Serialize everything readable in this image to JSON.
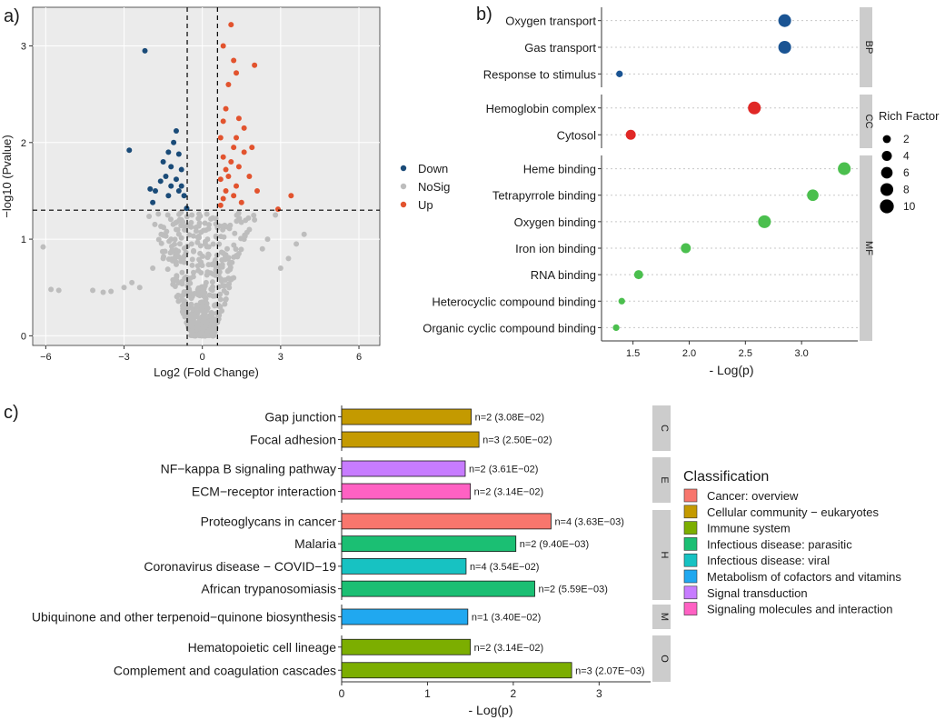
{
  "chart_data": [
    {
      "panel_label": "a)",
      "type": "scatter",
      "xlabel": "Log2 (Fold Change)",
      "ylabel": "−log10 (Pvalue)",
      "xlim": [
        -6.5,
        6.8
      ],
      "ylim": [
        -0.1,
        3.4
      ],
      "xticks": [
        -6,
        -3,
        0,
        3,
        6
      ],
      "xtick_labels": [
        "−6",
        "−3",
        "0",
        "3",
        "6"
      ],
      "yticks": [
        0,
        1,
        2,
        3
      ],
      "yline": 1.3,
      "xlines": [
        -0.58,
        0.58
      ],
      "legend": [
        {
          "name": "Down",
          "color": "#1a4b78"
        },
        {
          "name": "NoSig",
          "color": "#bdbdbd"
        },
        {
          "name": "Up",
          "color": "#e2532e"
        }
      ],
      "down_points": [
        [
          -2.2,
          2.95
        ],
        [
          -2.8,
          1.92
        ],
        [
          -1.0,
          2.12
        ],
        [
          -1.1,
          2.0
        ],
        [
          -1.3,
          1.9
        ],
        [
          -0.9,
          1.88
        ],
        [
          -1.5,
          1.8
        ],
        [
          -1.2,
          1.75
        ],
        [
          -0.8,
          1.72
        ],
        [
          -1.4,
          1.65
        ],
        [
          -1.0,
          1.62
        ],
        [
          -1.6,
          1.6
        ],
        [
          -2.0,
          1.52
        ],
        [
          -1.2,
          1.55
        ],
        [
          -0.8,
          1.55
        ],
        [
          -1.8,
          1.5
        ],
        [
          -1.3,
          1.45
        ],
        [
          -0.7,
          1.45
        ],
        [
          -0.9,
          1.5
        ],
        [
          -0.6,
          1.32
        ],
        [
          -1.9,
          1.38
        ]
      ],
      "up_points": [
        [
          1.1,
          3.22
        ],
        [
          0.8,
          3.0
        ],
        [
          1.2,
          2.85
        ],
        [
          2.0,
          2.8
        ],
        [
          1.3,
          2.72
        ],
        [
          1.0,
          2.6
        ],
        [
          0.9,
          2.35
        ],
        [
          1.4,
          2.25
        ],
        [
          0.8,
          2.22
        ],
        [
          1.6,
          2.15
        ],
        [
          0.7,
          2.05
        ],
        [
          1.3,
          2.05
        ],
        [
          1.2,
          1.95
        ],
        [
          1.9,
          1.95
        ],
        [
          1.6,
          1.9
        ],
        [
          0.8,
          1.85
        ],
        [
          1.1,
          1.8
        ],
        [
          1.4,
          1.75
        ],
        [
          0.9,
          1.72
        ],
        [
          1.0,
          1.65
        ],
        [
          1.8,
          1.65
        ],
        [
          0.7,
          1.62
        ],
        [
          1.3,
          1.55
        ],
        [
          0.9,
          1.5
        ],
        [
          2.1,
          1.5
        ],
        [
          1.2,
          1.45
        ],
        [
          0.8,
          1.42
        ],
        [
          3.4,
          1.45
        ],
        [
          0.7,
          1.35
        ],
        [
          2.9,
          1.31
        ],
        [
          1.5,
          1.38
        ]
      ],
      "nosig_points": [
        [
          -6.1,
          0.92
        ],
        [
          -5.8,
          0.48
        ],
        [
          -5.5,
          0.47
        ],
        [
          -4.2,
          0.47
        ],
        [
          -3.8,
          0.45
        ],
        [
          -3.5,
          0.46
        ],
        [
          -3.0,
          0.5
        ],
        [
          -2.7,
          0.55
        ],
        [
          -2.4,
          0.5
        ],
        [
          -1.2,
          1.0
        ],
        [
          -1.5,
          0.8
        ],
        [
          -1.9,
          0.7
        ],
        [
          3.0,
          0.7
        ],
        [
          3.3,
          0.8
        ],
        [
          3.9,
          1.05
        ],
        [
          3.6,
          0.95
        ],
        [
          2.5,
          1.0
        ],
        [
          2.3,
          0.9
        ],
        [
          2.8,
          1.25
        ],
        [
          2.0,
          1.2
        ],
        [
          1.8,
          1.1
        ],
        [
          1.6,
          1.0
        ],
        [
          1.4,
          0.85
        ],
        [
          1.2,
          0.6
        ],
        [
          -0.8,
          1.2
        ],
        [
          -1.0,
          1.1
        ],
        [
          -0.4,
          1.25
        ],
        [
          0.4,
          1.22
        ],
        [
          0.2,
          1.0
        ]
      ]
    },
    {
      "panel_label": "b)",
      "type": "scatter",
      "xlabel": "- Log(p)",
      "xlim": [
        1.22,
        3.5
      ],
      "xticks": [
        1.5,
        2.0,
        2.5,
        3.0
      ],
      "xtick_labels": [
        "1.5",
        "2.0",
        "2.5",
        "3.0"
      ],
      "size_legend_title": "Rich Factor",
      "size_legend": [
        2,
        4,
        6,
        8,
        10
      ],
      "facets": [
        {
          "label": "BP",
          "color": "#1a5493",
          "terms": [
            {
              "term": "Oxygen transport",
              "value": 2.85,
              "rich": 8
            },
            {
              "term": "Gas transport",
              "value": 2.85,
              "rich": 8
            },
            {
              "term": "Response to stimulus",
              "value": 1.38,
              "rich": 1
            }
          ]
        },
        {
          "label": "CC",
          "color": "#e02826",
          "terms": [
            {
              "term": "Hemoglobin complex",
              "value": 2.58,
              "rich": 8
            },
            {
              "term": "Cytosol",
              "value": 1.48,
              "rich": 4
            }
          ]
        },
        {
          "label": "MF",
          "color": "#4bbf4e",
          "terms": [
            {
              "term": "Heme binding",
              "value": 3.38,
              "rich": 8
            },
            {
              "term": "Tetrapyrrole binding",
              "value": 3.1,
              "rich": 6
            },
            {
              "term": "Oxygen binding",
              "value": 2.67,
              "rich": 8
            },
            {
              "term": "Iron ion binding",
              "value": 1.97,
              "rich": 4
            },
            {
              "term": "RNA binding",
              "value": 1.55,
              "rich": 3
            },
            {
              "term": "Heterocyclic compound binding",
              "value": 1.4,
              "rich": 1
            },
            {
              "term": "Organic cyclic compound binding",
              "value": 1.35,
              "rich": 1
            }
          ]
        }
      ]
    },
    {
      "panel_label": "c)",
      "type": "bar",
      "orientation": "horizontal",
      "xlabel": "- Log(p)",
      "xlim": [
        0,
        3.6
      ],
      "xticks": [
        0,
        1,
        2,
        3
      ],
      "legend_title": "Classification",
      "legend": [
        {
          "name": "Cancer: overview",
          "color": "#f8766d"
        },
        {
          "name": "Cellular community − eukaryotes",
          "color": "#c49a00"
        },
        {
          "name": "Immune system",
          "color": "#7cae00"
        },
        {
          "name": "Infectious disease: parasitic",
          "color": "#1bbf73"
        },
        {
          "name": "Infectious disease: viral",
          "color": "#17c2c2"
        },
        {
          "name": "Metabolism of cofactors and vitamins",
          "color": "#20a8f0"
        },
        {
          "name": "Signal transduction",
          "color": "#c77cff"
        },
        {
          "name": "Signaling molecules and interaction",
          "color": "#ff61c3"
        }
      ],
      "groups": [
        {
          "label": "C",
          "bars": [
            {
              "name": "Gap junction",
              "value": 1.51,
              "label": "n=2 (3.08E−02)",
              "cls": 1
            },
            {
              "name": "Focal adhesion",
              "value": 1.6,
              "label": "n=3 (2.50E−02)",
              "cls": 1
            }
          ]
        },
        {
          "label": "E",
          "bars": [
            {
              "name": "NF−kappa B signaling pathway",
              "value": 1.44,
              "label": "n=2 (3.61E−02)",
              "cls": 6
            },
            {
              "name": "ECM−receptor interaction",
              "value": 1.5,
              "label": "n=2 (3.14E−02)",
              "cls": 7
            }
          ]
        },
        {
          "label": "H",
          "bars": [
            {
              "name": "Proteoglycans in cancer",
              "value": 2.44,
              "label": "n=4 (3.63E−03)",
              "cls": 0
            },
            {
              "name": "Malaria",
              "value": 2.03,
              "label": "n=2 (9.40E−03)",
              "cls": 3
            },
            {
              "name": "Coronavirus disease − COVID−19",
              "value": 1.45,
              "label": "n=4 (3.54E−02)",
              "cls": 4
            },
            {
              "name": "African trypanosomiasis",
              "value": 2.25,
              "label": "n=2 (5.59E−03)",
              "cls": 3
            }
          ]
        },
        {
          "label": "M",
          "bars": [
            {
              "name": "Ubiquinone and other terpenoid−quinone biosynthesis",
              "value": 1.47,
              "label": "n=1 (3.40E−02)",
              "cls": 5
            }
          ]
        },
        {
          "label": "O",
          "bars": [
            {
              "name": "Hematopoietic cell lineage",
              "value": 1.5,
              "label": "n=2 (3.14E−02)",
              "cls": 2
            },
            {
              "name": "Complement and coagulation cascades",
              "value": 2.68,
              "label": "n=3 (2.07E−03)",
              "cls": 2
            }
          ]
        }
      ]
    }
  ]
}
